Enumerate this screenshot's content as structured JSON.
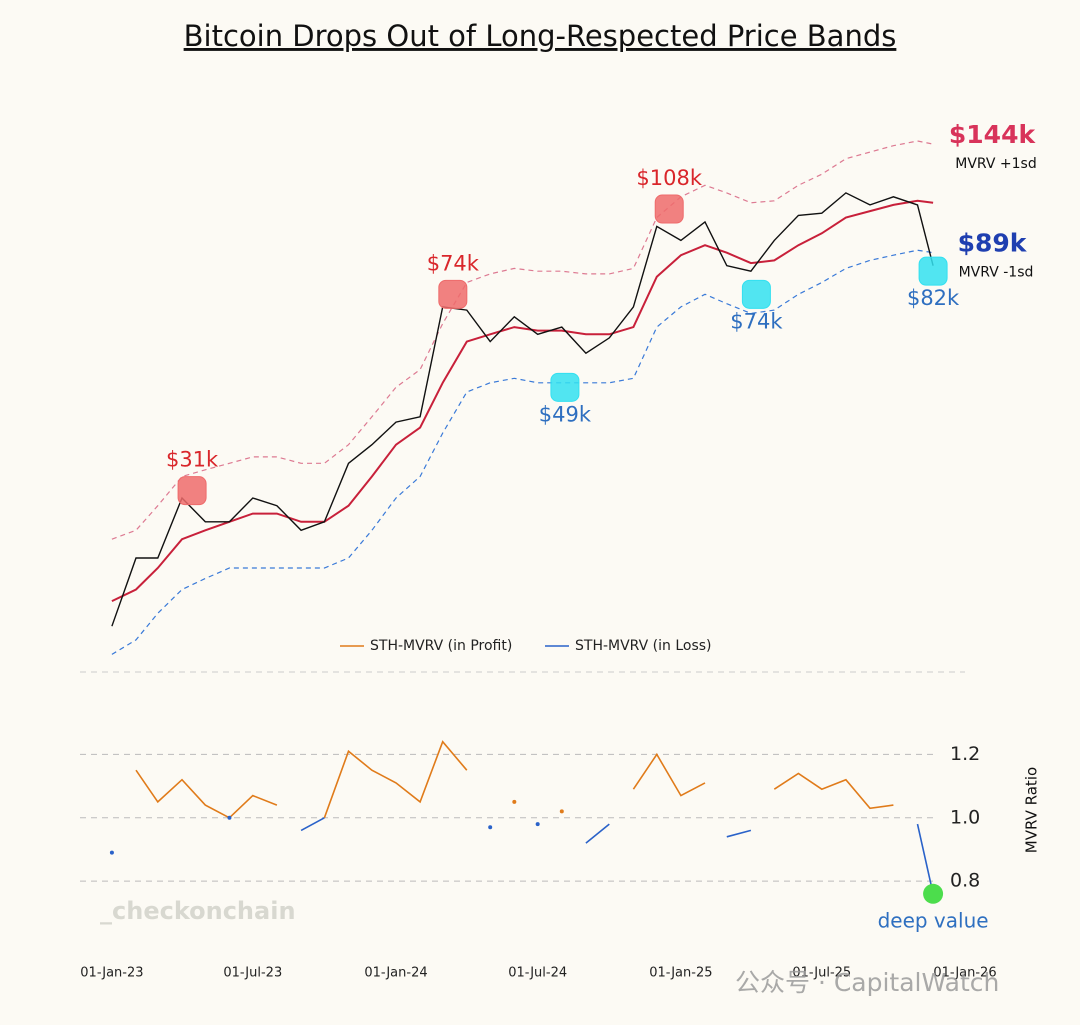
{
  "chart_data": [
    {
      "type": "line",
      "title": "Bitcoin Drops Out of Long-Respected Price Bands",
      "log": true,
      "xlim": [
        "2022-11-21",
        "2026-01-10"
      ],
      "ylim": [
        14,
        200
      ],
      "x": [
        "2023-01-01",
        "2023-02-01",
        "2023-03-01",
        "2023-04-01",
        "2023-05-01",
        "2023-06-01",
        "2023-07-01",
        "2023-08-01",
        "2023-09-01",
        "2023-10-01",
        "2023-11-01",
        "2023-12-01",
        "2024-01-01",
        "2024-02-01",
        "2024-03-01",
        "2024-04-01",
        "2024-05-01",
        "2024-06-01",
        "2024-07-01",
        "2024-08-01",
        "2024-09-01",
        "2024-10-01",
        "2024-11-01",
        "2024-12-01",
        "2025-01-01",
        "2025-02-01",
        "2025-03-01",
        "2025-04-01",
        "2025-05-01",
        "2025-06-01",
        "2025-07-01",
        "2025-08-01",
        "2025-09-01",
        "2025-10-01",
        "2025-11-01",
        "2025-11-21"
      ],
      "series": [
        {
          "color": "#dd7a92",
          "dash": true,
          "width": 1.2,
          "end_label": "$144k",
          "end_note": "MVRV +1sd",
          "label_color": "#d8335a",
          "values": [
            25,
            26,
            29,
            33,
            34,
            35,
            36,
            36,
            35,
            35,
            38,
            43,
            49,
            53,
            65,
            78,
            81,
            83,
            82,
            82,
            81,
            81,
            83,
            104,
            114,
            120,
            116,
            111,
            112,
            120,
            126,
            135,
            139,
            143,
            146,
            144
          ]
        },
        {
          "color": "#3a7ad8",
          "dash": true,
          "width": 1.2,
          "end_label": "$89k",
          "end_note": "MVRV -1sd",
          "label_color": "#1f3fb0",
          "values": [
            15,
            16,
            18,
            20,
            21,
            22,
            22,
            22,
            22,
            22,
            23,
            26,
            30,
            33,
            40,
            48,
            50,
            51,
            50,
            50,
            50,
            50,
            51,
            64,
            70,
            74,
            71,
            68,
            69,
            74,
            78,
            83,
            86,
            88,
            90,
            89
          ]
        },
        {
          "color": "#c8203a",
          "dash": false,
          "width": 2,
          "values": [
            19,
            20,
            22,
            25,
            26,
            27,
            28,
            28,
            27,
            27,
            29,
            33,
            38,
            41,
            50,
            60,
            62,
            64,
            63,
            63,
            62,
            62,
            64,
            80,
            88,
            92,
            89,
            85,
            86,
            92,
            97,
            104,
            107,
            110,
            112,
            111
          ]
        },
        {
          "color": "#111111",
          "dash": false,
          "width": 1.4,
          "values": [
            17,
            23,
            23,
            30,
            27,
            27,
            30,
            29,
            26,
            27,
            35,
            38,
            42,
            43,
            70,
            69,
            60,
            67,
            62,
            64,
            57,
            61,
            70,
            100,
            94,
            102,
            84,
            82,
            94,
            105,
            106,
            116,
            110,
            114,
            110,
            84
          ]
        }
      ],
      "annotations": [
        {
          "x": "2023-04-14",
          "value": 31,
          "label": "$31k",
          "position": "above",
          "color": "#d9262b",
          "marker": "#ee6b6b"
        },
        {
          "x": "2024-03-14",
          "value": 74,
          "label": "$74k",
          "position": "above",
          "color": "#d9262b",
          "marker": "#ee6b6b"
        },
        {
          "x": "2024-12-17",
          "value": 108,
          "label": "$108k",
          "position": "above",
          "color": "#d9262b",
          "marker": "#ee6b6b"
        },
        {
          "x": "2024-08-05",
          "value": 49,
          "label": "$49k",
          "position": "below",
          "color": "#2e6fc0",
          "marker": "#33e0f0"
        },
        {
          "x": "2025-04-08",
          "value": 74,
          "label": "$74k",
          "position": "below",
          "color": "#2e6fc0",
          "marker": "#33e0f0"
        },
        {
          "x": "2025-11-21",
          "value": 82,
          "label": "$82k",
          "position": "below",
          "color": "#2e6fc0",
          "marker": "#33e0f0"
        }
      ]
    },
    {
      "type": "line",
      "ylabel": "MVRV Ratio",
      "legend": "top",
      "grid": true,
      "xlim": [
        "2022-11-21",
        "2026-01-10"
      ],
      "ylim": [
        0.63,
        1.46
      ],
      "yticks": [
        0.8,
        {
          "value": 1,
          "label": "1.0"
        },
        1.2
      ],
      "xticks": [
        {
          "value": "2023-01-01",
          "label": "01-Jan-23"
        },
        {
          "value": "2023-07-01",
          "label": "01-Jul-23"
        },
        {
          "value": "2024-01-01",
          "label": "01-Jan-24"
        },
        {
          "value": "2024-07-01",
          "label": "01-Jul-24"
        },
        {
          "value": "2025-01-01",
          "label": "01-Jan-25"
        },
        {
          "value": "2025-07-01",
          "label": "01-Jul-25"
        },
        {
          "value": "2026-01-01",
          "label": "01-Jan-26"
        }
      ],
      "x": [
        "2023-01-01",
        "2023-02-01",
        "2023-03-01",
        "2023-04-01",
        "2023-05-01",
        "2023-06-01",
        "2023-07-01",
        "2023-08-01",
        "2023-09-01",
        "2023-10-01",
        "2023-11-01",
        "2023-12-01",
        "2024-01-01",
        "2024-02-01",
        "2024-03-01",
        "2024-04-01",
        "2024-05-01",
        "2024-06-01",
        "2024-07-01",
        "2024-08-01",
        "2024-09-01",
        "2024-10-01",
        "2024-11-01",
        "2024-12-01",
        "2025-01-01",
        "2025-02-01",
        "2025-03-01",
        "2025-04-01",
        "2025-05-01",
        "2025-06-01",
        "2025-07-01",
        "2025-08-01",
        "2025-09-01",
        "2025-10-01",
        "2025-11-01",
        "2025-11-21"
      ],
      "series": [
        {
          "name": "STH-MVRV (in Profit)",
          "color": "#e07b1a",
          "values": [
            null,
            1.15,
            1.05,
            1.12,
            1.04,
            1.0,
            1.07,
            1.04,
            null,
            1.0,
            1.21,
            1.15,
            1.11,
            1.05,
            1.24,
            1.15,
            null,
            1.05,
            null,
            1.02,
            null,
            null,
            1.09,
            1.2,
            1.07,
            1.11,
            null,
            null,
            1.09,
            1.14,
            1.09,
            1.12,
            1.03,
            1.04,
            null,
            null
          ]
        },
        {
          "name": "STH-MVRV (in Loss)",
          "color": "#2a62c9",
          "values": [
            0.89,
            null,
            null,
            null,
            null,
            1.0,
            null,
            null,
            0.96,
            1.0,
            null,
            null,
            null,
            null,
            null,
            null,
            0.97,
            null,
            0.98,
            null,
            0.92,
            0.98,
            null,
            null,
            null,
            null,
            0.94,
            0.96,
            null,
            null,
            null,
            null,
            null,
            null,
            0.98,
            0.76
          ]
        }
      ],
      "annotations": [
        {
          "x": "2025-11-21",
          "value": 0.76,
          "label": "deep value",
          "position": "below",
          "color": "#2e6fc0",
          "marker": "#4cdd4c"
        }
      ]
    }
  ],
  "watermarks": [
    "_checkonchain",
    "公众号 · CapitalWatch"
  ]
}
